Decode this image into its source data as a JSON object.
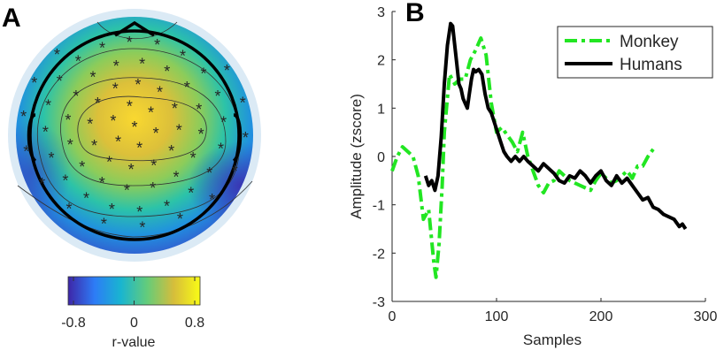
{
  "chart_data": [
    {
      "type": "topomap",
      "panel_label": "A",
      "colorbar_label": "r-value",
      "clim": [
        -0.87,
        0.87
      ],
      "cticks": [
        -0.8,
        0,
        0.8
      ],
      "colormap": [
        "#3e26a8",
        "#2d7cf6",
        "#19b5d0",
        "#64cc7a",
        "#d6bd3b",
        "#f9fb15"
      ]
    },
    {
      "type": "line",
      "panel_label": "B",
      "xlabel": "Samples",
      "ylabel": "Amplitude (zscore)",
      "xlim": [
        0,
        300
      ],
      "ylim": [
        -3,
        3
      ],
      "xticks": [
        0,
        100,
        200,
        300
      ],
      "yticks": [
        -3,
        -2,
        -1,
        0,
        1,
        2,
        3
      ],
      "legend": "upper right",
      "series": [
        {
          "name": "Monkey",
          "color": "#22e622",
          "dash": true,
          "x": [
            0,
            5,
            10,
            15,
            20,
            25,
            30,
            35,
            40,
            42,
            45,
            48,
            50,
            55,
            60,
            65,
            70,
            75,
            80,
            85,
            90,
            95,
            100,
            105,
            110,
            115,
            120,
            125,
            130,
            135,
            140,
            145,
            150,
            155,
            160,
            165,
            170,
            175,
            180,
            185,
            190,
            195,
            200,
            205,
            210,
            215,
            220,
            225,
            230,
            235,
            240,
            245,
            250
          ],
          "values": [
            -0.3,
            0.0,
            0.2,
            0.1,
            0.0,
            -0.4,
            -1.3,
            -1.1,
            -2.2,
            -2.5,
            -1.8,
            -0.6,
            0.5,
            1.7,
            1.5,
            1.6,
            1.6,
            2.0,
            2.2,
            2.45,
            2.1,
            1.1,
            0.5,
            0.6,
            0.45,
            0.3,
            0.1,
            0.5,
            0.0,
            -0.3,
            -0.6,
            -0.75,
            -0.55,
            -0.5,
            -0.3,
            -0.4,
            -0.5,
            -0.55,
            -0.6,
            -0.65,
            -0.7,
            -0.5,
            -0.35,
            -0.45,
            -0.55,
            -0.5,
            -0.4,
            -0.3,
            -0.45,
            -0.2,
            -0.2,
            0.0,
            0.15
          ]
        },
        {
          "name": "Humans",
          "color": "#000000",
          "dash": false,
          "x": [
            32,
            35,
            38,
            41,
            44,
            47,
            50,
            53,
            56,
            58,
            60,
            62,
            64,
            66,
            68,
            70,
            72,
            74,
            76,
            78,
            80,
            83,
            86,
            89,
            92,
            95,
            98,
            101,
            104,
            107,
            110,
            114,
            118,
            122,
            126,
            130,
            135,
            140,
            145,
            150,
            155,
            160,
            165,
            170,
            175,
            180,
            185,
            190,
            195,
            200,
            205,
            210,
            215,
            220,
            225,
            230,
            235,
            240,
            245,
            250,
            255,
            260,
            265,
            270,
            275,
            278,
            281
          ],
          "values": [
            -0.4,
            -0.6,
            -0.5,
            -0.7,
            -0.4,
            0.4,
            1.5,
            2.3,
            2.75,
            2.7,
            2.3,
            1.9,
            1.5,
            1.4,
            1.2,
            1.1,
            1.0,
            1.3,
            1.6,
            1.8,
            1.75,
            1.8,
            1.7,
            1.3,
            1.0,
            0.9,
            0.7,
            0.5,
            0.3,
            0.1,
            0.0,
            -0.1,
            0.0,
            -0.1,
            0.0,
            -0.1,
            -0.2,
            -0.3,
            -0.15,
            -0.25,
            -0.35,
            -0.5,
            -0.55,
            -0.4,
            -0.45,
            -0.3,
            -0.4,
            -0.55,
            -0.4,
            -0.3,
            -0.5,
            -0.6,
            -0.4,
            -0.55,
            -0.45,
            -0.6,
            -0.75,
            -0.9,
            -0.85,
            -1.05,
            -1.1,
            -1.2,
            -1.25,
            -1.3,
            -1.45,
            -1.4,
            -1.5
          ]
        }
      ]
    }
  ]
}
